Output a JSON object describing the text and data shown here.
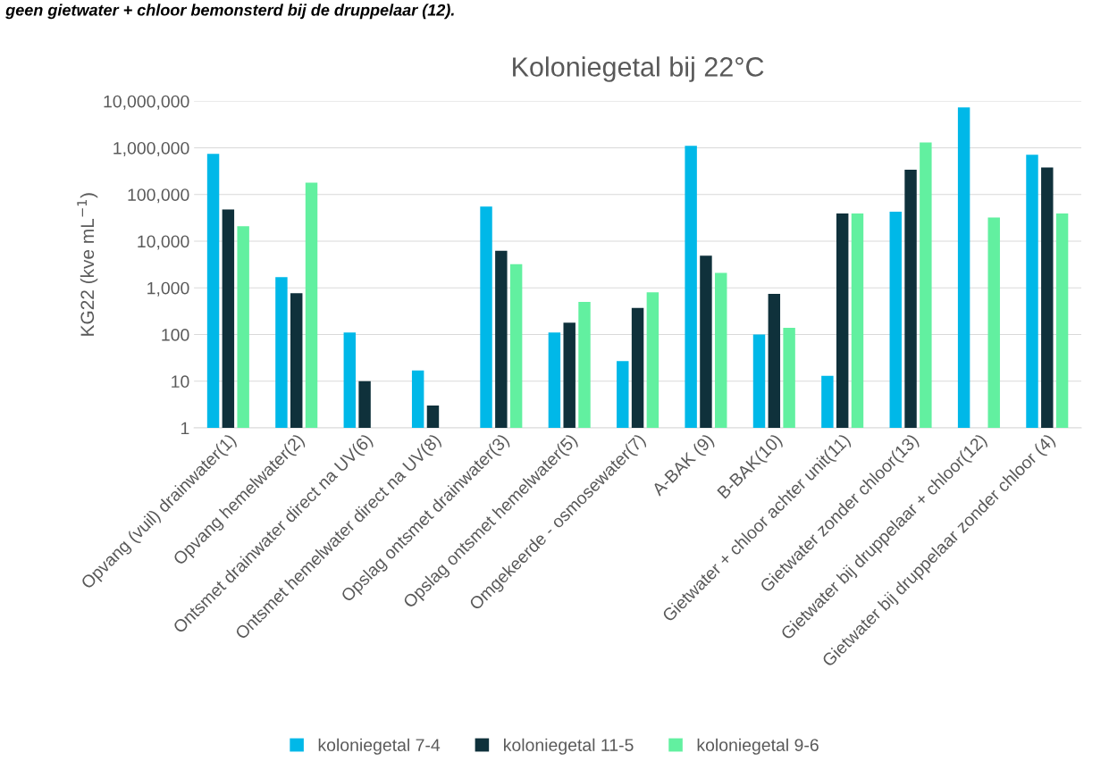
{
  "chart_data": {
    "type": "bar",
    "title": "Koloniegetal bij 22°C",
    "ylabel": "KG22 (kve mL$^{−1}$)",
    "annotations": [
      "geen gietwater + chloor bemonsterd bij de druppelaar (12)."
    ],
    "categories": [
      "Opvang (vuil) drainwater(1)",
      "Opvang hemelwater(2)",
      "Ontsmet drainwater direct na UV(6)",
      "Ontsmet hemelwater direct na UV(8)",
      "Opslag ontsmet drainwater(3)",
      "Opslag ontsmet hemelwater(5)",
      "Omgekeerde - osmosewater(7)",
      "A-BAK (9)",
      "B-BAK(10)",
      "Gietwater + chloor achter unit(11)",
      "Gietwater zonder chloor(13)",
      "Gietwater bij druppelaar + chloor(12)",
      "Gietwater bij druppelaar zonder chloor (4)"
    ],
    "series": [
      {
        "name": "koloniegetal 7-4",
        "color": "#00b8e8",
        "values": [
          740000,
          1700,
          110,
          17,
          55000,
          110,
          27,
          1100000,
          100,
          13,
          43000,
          7300000,
          710000
        ]
      },
      {
        "name": "koloniegetal 11-5",
        "color": "#0f313b",
        "values": [
          48000,
          770,
          10,
          3,
          6200,
          180,
          370,
          4900,
          740,
          39000,
          340000,
          null,
          380000
        ]
      },
      {
        "name": "koloniegetal 9-6",
        "color": "#62f0a0",
        "values": [
          21000,
          180000,
          null,
          null,
          3200,
          500,
          800,
          2100,
          140,
          39000,
          1300000,
          32000,
          39000
        ]
      }
    ],
    "log": "y",
    "ylim": [
      1,
      10000000
    ],
    "yticks": [
      1,
      10,
      100,
      {
        "value": 1000,
        "label": "1,000"
      },
      {
        "value": 10000,
        "label": "10,000"
      },
      {
        "value": 100000,
        "label": "100,000"
      },
      {
        "value": 1000000,
        "label": "1,000,000"
      },
      {
        "value": 10000000,
        "label": "10,000,000"
      }
    ],
    "grid": "y",
    "legend": "bottom"
  }
}
